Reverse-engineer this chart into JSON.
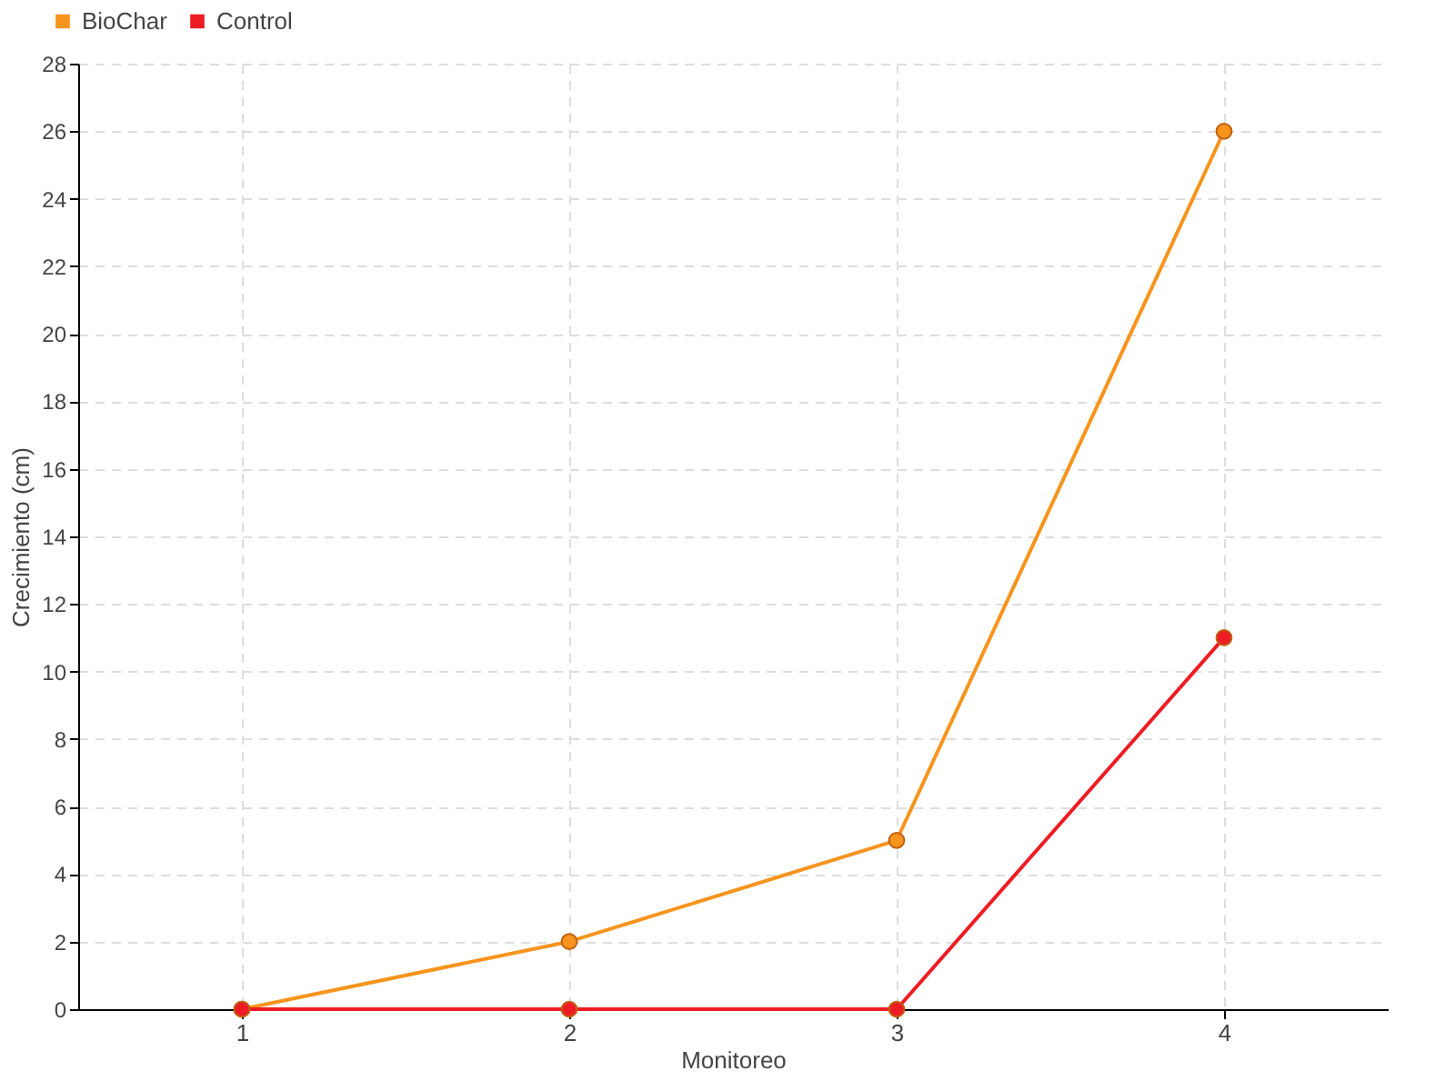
{
  "chart_data": {
    "type": "line",
    "xlabel": "Monitoreo",
    "ylabel": "Crecimiento (cm)",
    "categories": [
      "1",
      "2",
      "3",
      "4"
    ],
    "series": [
      {
        "name": "BioChar",
        "color": "#f7941d",
        "values": [
          0,
          2,
          5,
          26
        ]
      },
      {
        "name": "Control",
        "color": "#ed1c24",
        "values": [
          0,
          0,
          0,
          11
        ]
      }
    ],
    "ylim": [
      0,
      28
    ],
    "yticks": [
      0,
      2,
      4,
      6,
      8,
      10,
      12,
      14,
      16,
      18,
      20,
      22,
      24,
      26,
      28
    ],
    "grid": true,
    "legend": "top left",
    "marker": "circle",
    "line_style": "solid"
  }
}
